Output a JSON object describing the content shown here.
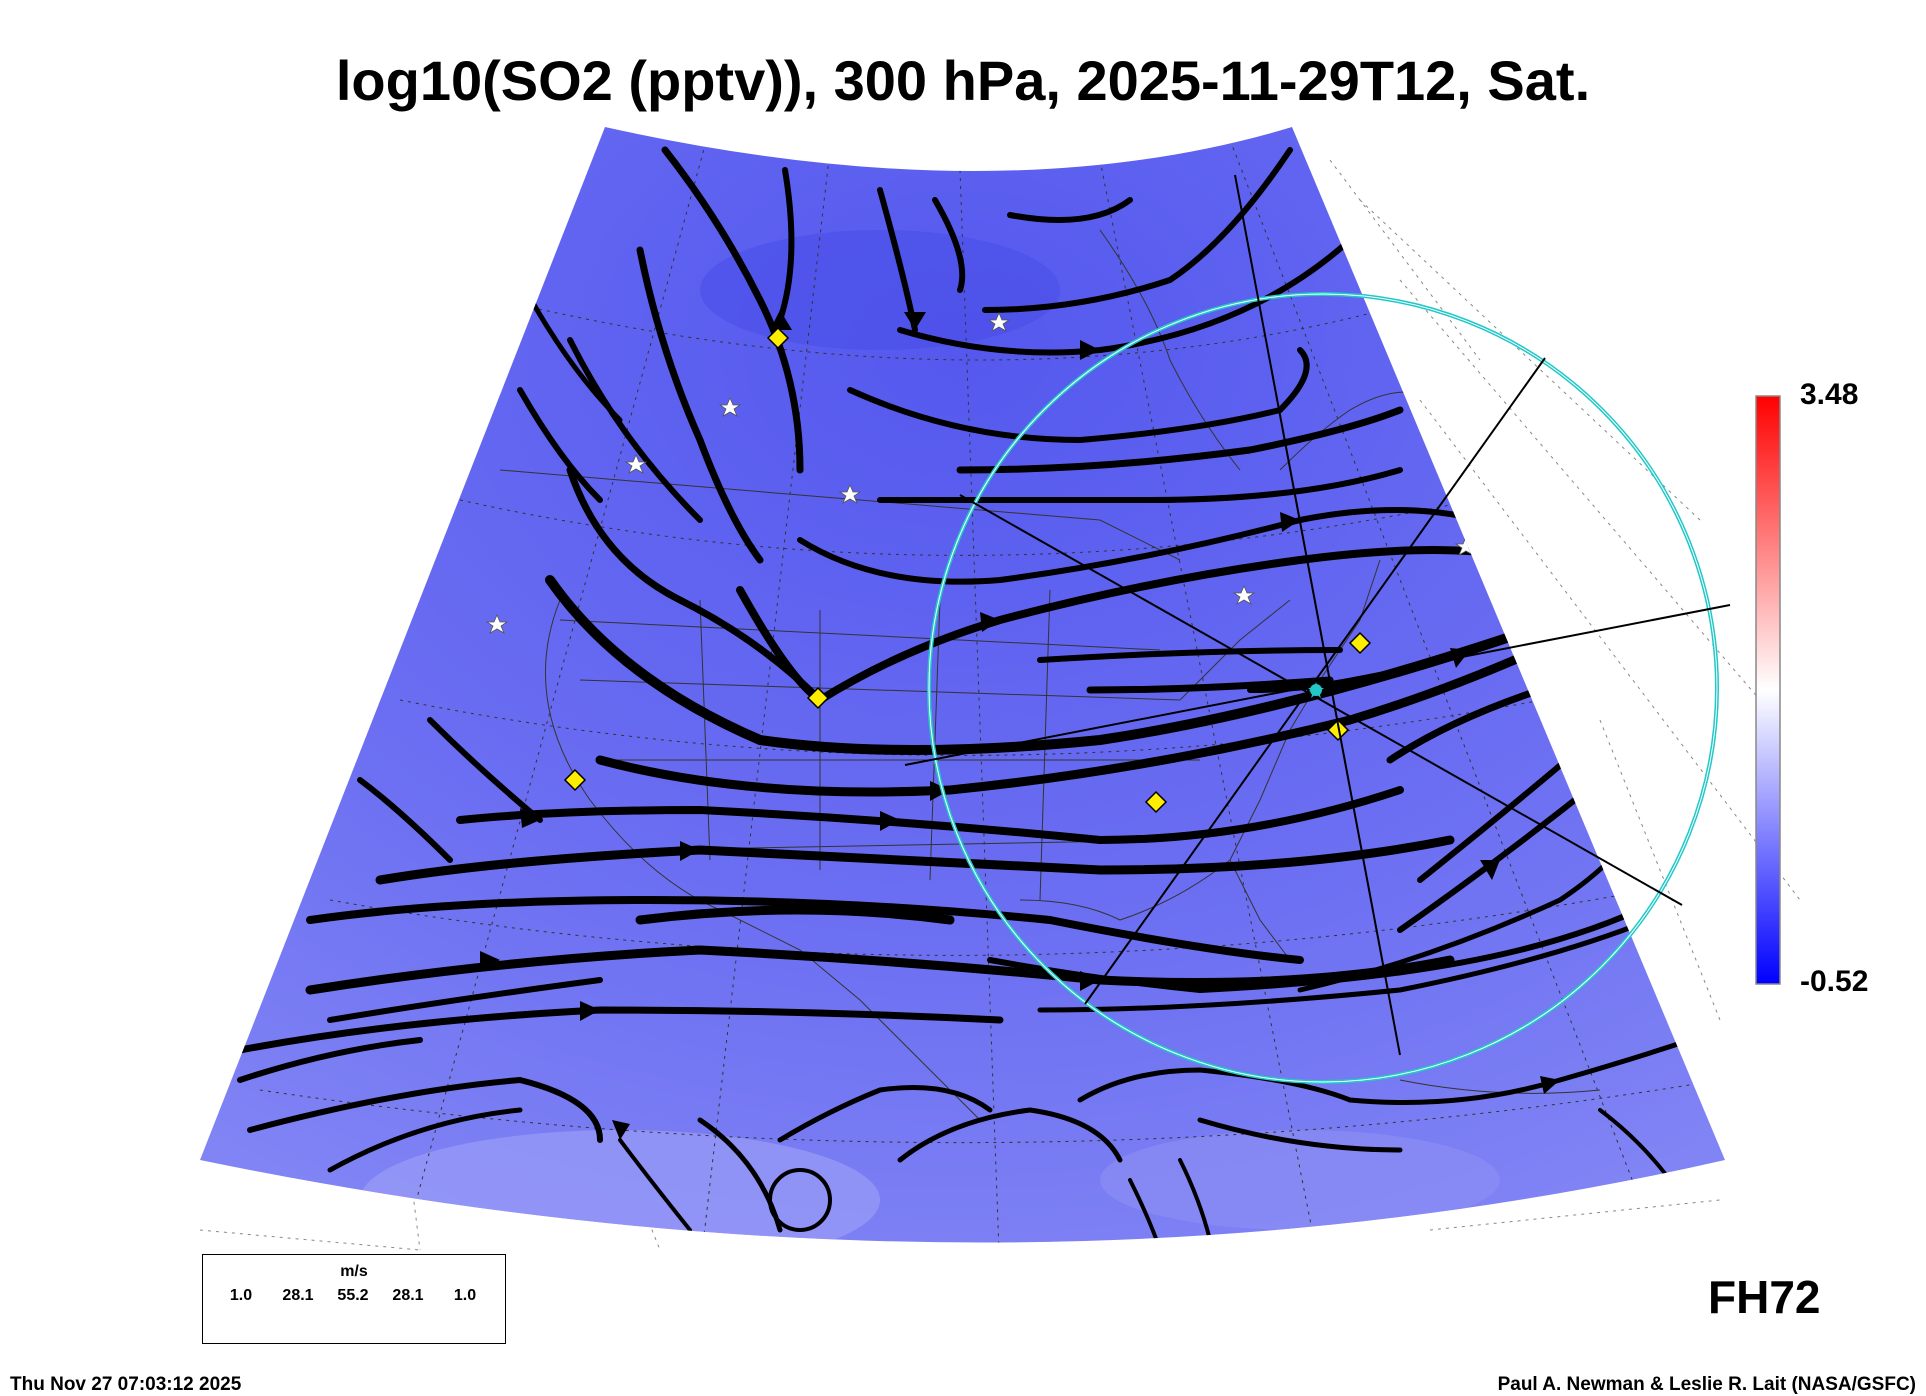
{
  "title": "log10(SO2 (pptv)), 300 hPa, 2025-11-29T12, Sat.",
  "colorbar": {
    "max_label": "3.48",
    "min_label": "-0.52",
    "low_color": "#0000ff",
    "mid_color": "#ffffff",
    "high_color": "#ff0000"
  },
  "forecast_hour": "FH72",
  "footer": {
    "timestamp": "Thu Nov 27 07:03:12 2025",
    "credit": "Paul A. Newman & Leslie R. Lait (NASA/GSFC)"
  },
  "wind_legend": {
    "unit": "m/s",
    "labels": [
      "1.0",
      "28.1",
      "55.2",
      "28.1",
      "1.0"
    ]
  },
  "field_color": "#6f72f4",
  "marker_colors": {
    "diamond": "#ffee00",
    "star": "#ffffff",
    "circle": "#22c8c8"
  }
}
